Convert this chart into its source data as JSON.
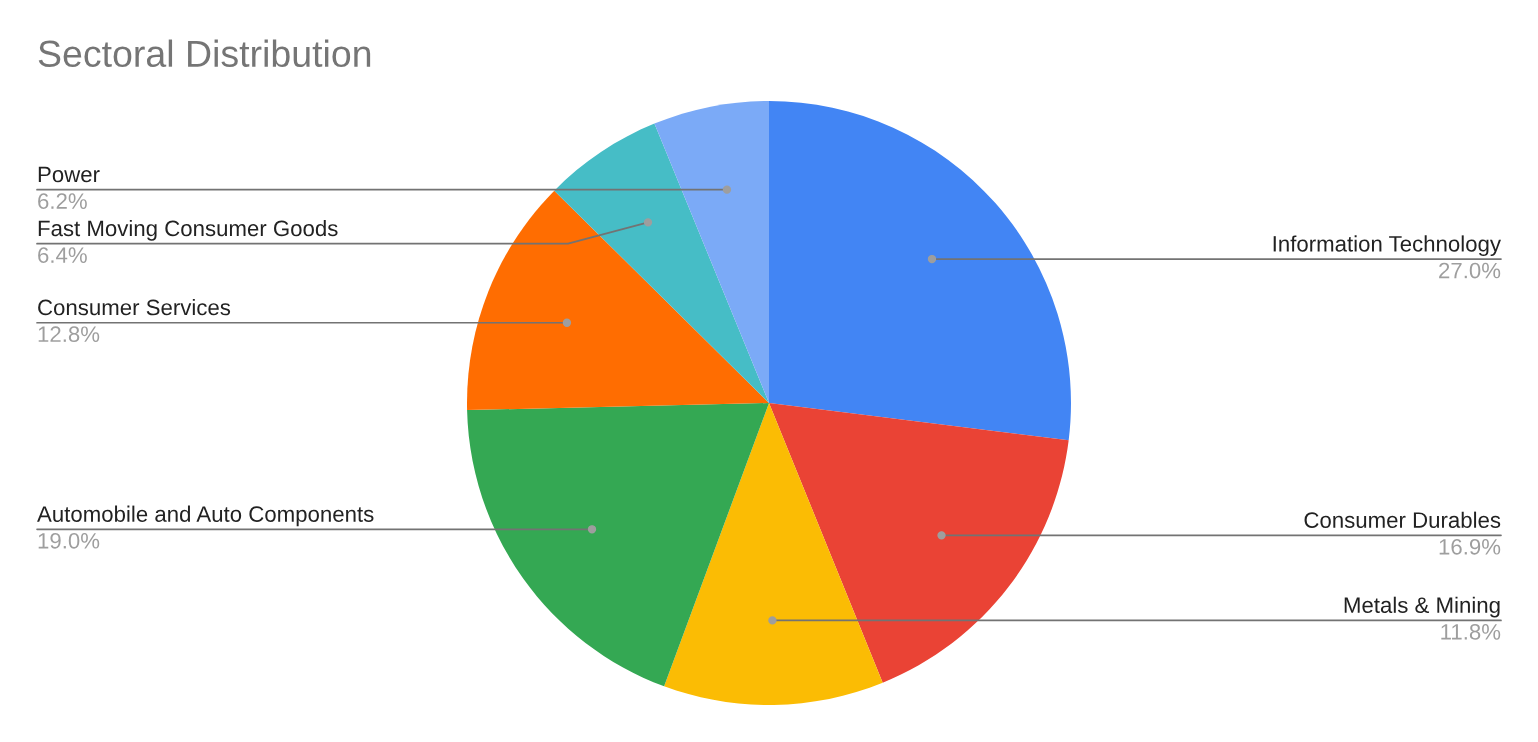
{
  "chart_data": {
    "type": "pie",
    "title": "Sectoral Distribution",
    "categories": [
      "Information Technology",
      "Consumer Durables",
      "Metals & Mining",
      "Automobile and Auto Components",
      "Consumer Services",
      "Fast Moving Consumer Goods",
      "Power"
    ],
    "values": [
      27.0,
      16.9,
      11.8,
      19.0,
      12.8,
      6.4,
      6.2
    ],
    "value_labels": [
      "27.0%",
      "16.9%",
      "11.8%",
      "19.0%",
      "12.8%",
      "6.4%",
      "6.2%"
    ],
    "colors": [
      "#4285f4",
      "#ea4335",
      "#fbbc04",
      "#34a853",
      "#ff6d01",
      "#46bdc6",
      "#7baaf7"
    ]
  }
}
